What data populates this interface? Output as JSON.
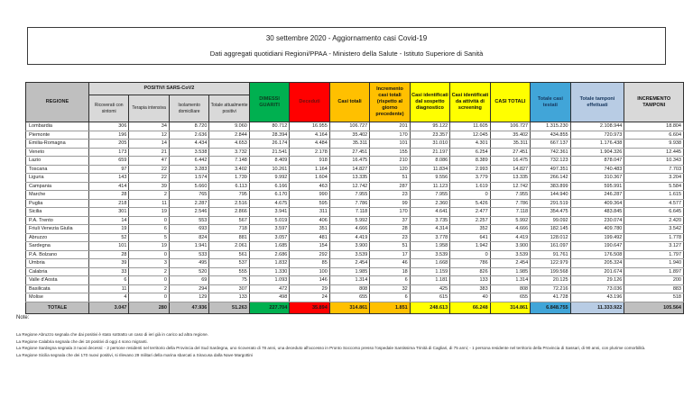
{
  "title": {
    "line1": "30 settembre 2020 - Aggiornamento casi Covid-19",
    "line2": "Dati aggregati quotidiani Regioni/PPAA - Ministero della Salute - Istituto Superiore di Sanità"
  },
  "table": {
    "region_header": "REGIONE",
    "region_header_bg": "#BFBFBF",
    "positivi_group_header": "POSITIVI SARS-CoV2",
    "subheader_bg": "#D9D9D9",
    "columns": [
      {
        "label": "Ricoverati con sintomi",
        "bg": "#D9D9D9",
        "sub": true
      },
      {
        "label": "Terapia intensiva",
        "bg": "#D9D9D9",
        "sub": true
      },
      {
        "label": "Isolamento domiciliare",
        "bg": "#D9D9D9",
        "sub": true
      },
      {
        "label": "Totale attualmente positivi",
        "bg": "#D9D9D9",
        "sub": true
      },
      {
        "label": "DIMESSI GUARITI",
        "bg": "#00B050",
        "fg": "#0e3d20"
      },
      {
        "label": "Deceduti",
        "bg": "#FF0000",
        "fg": "#6b0f0f"
      },
      {
        "label": "Casi totali",
        "bg": "#FFC000",
        "fg": "#111111"
      },
      {
        "label": "Incremento casi totali (rispetto al giorno precedente)",
        "bg": "#FFC000",
        "fg": "#111111"
      },
      {
        "label": "Casi identificati dal sospetto diagnostico",
        "bg": "#FFFF00",
        "fg": "#111111"
      },
      {
        "label": "Casi identificati da attività di screening",
        "bg": "#FFFF00",
        "fg": "#111111"
      },
      {
        "label": "CASI TOTALI",
        "bg": "#FFFF00",
        "fg": "#111111"
      },
      {
        "label": "Totale casi testati",
        "bg": "#41A5D8",
        "fg": "#17375E"
      },
      {
        "label": "Totale tamponi effettuati",
        "bg": "#B8CCE4",
        "fg": "#17375E"
      },
      {
        "label": "INCREMENTO TAMPONI",
        "bg": "#D9D9D9",
        "fg": "#111111"
      }
    ],
    "rows": [
      {
        "name": "Lombardia",
        "values": [
          "306",
          "34",
          "8.720",
          "9.060",
          "80.712",
          "16.955",
          "106.727",
          "201",
          "95.122",
          "11.605",
          "106.727",
          "1.315.230",
          "2.108.944",
          "18.804"
        ]
      },
      {
        "name": "Piemonte",
        "values": [
          "196",
          "12",
          "2.636",
          "2.844",
          "28.394",
          "4.164",
          "35.402",
          "170",
          "23.357",
          "12.045",
          "35.402",
          "434.855",
          "720.973",
          "6.604"
        ]
      },
      {
        "name": "Emilia-Romagna",
        "values": [
          "205",
          "14",
          "4.434",
          "4.653",
          "26.174",
          "4.484",
          "35.311",
          "101",
          "31.010",
          "4.301",
          "35.311",
          "667.137",
          "1.176.438",
          "9.938"
        ]
      },
      {
        "name": "Veneto",
        "values": [
          "173",
          "21",
          "3.538",
          "3.732",
          "21.541",
          "2.178",
          "27.451",
          "155",
          "21.197",
          "6.254",
          "27.451",
          "742.361",
          "1.904.326",
          "12.445"
        ]
      },
      {
        "name": "Lazio",
        "values": [
          "659",
          "47",
          "6.442",
          "7.148",
          "8.409",
          "918",
          "16.475",
          "210",
          "8.086",
          "8.389",
          "16.475",
          "732.123",
          "878.047",
          "10.343"
        ]
      },
      {
        "name": "Toscana",
        "values": [
          "97",
          "22",
          "3.283",
          "3.402",
          "10.261",
          "1.164",
          "14.827",
          "120",
          "11.834",
          "2.993",
          "14.827",
          "497.351",
          "740.483",
          "7.703"
        ]
      },
      {
        "name": "Liguria",
        "values": [
          "143",
          "22",
          "1.574",
          "1.739",
          "9.992",
          "1.604",
          "13.335",
          "51",
          "9.556",
          "3.779",
          "13.335",
          "266.142",
          "310.367",
          "3.204"
        ]
      },
      {
        "name": "Campania",
        "values": [
          "414",
          "39",
          "5.660",
          "6.113",
          "6.166",
          "463",
          "12.742",
          "287",
          "11.123",
          "1.619",
          "12.742",
          "383.899",
          "595.991",
          "5.584"
        ]
      },
      {
        "name": "Marche",
        "values": [
          "28",
          "2",
          "765",
          "795",
          "6.170",
          "990",
          "7.955",
          "23",
          "7.955",
          "0",
          "7.955",
          "144.940",
          "246.287",
          "1.615"
        ]
      },
      {
        "name": "Puglia",
        "values": [
          "218",
          "11",
          "2.287",
          "2.516",
          "4.675",
          "595",
          "7.786",
          "99",
          "2.360",
          "5.426",
          "7.786",
          "291.519",
          "409.364",
          "4.577"
        ]
      },
      {
        "name": "Sicilia",
        "values": [
          "301",
          "19",
          "2.546",
          "2.866",
          "3.941",
          "311",
          "7.118",
          "170",
          "4.641",
          "2.477",
          "7.118",
          "354.475",
          "483.845",
          "6.645"
        ]
      },
      {
        "name": "P.A. Trento",
        "values": [
          "14",
          "0",
          "553",
          "567",
          "5.019",
          "406",
          "5.992",
          "37",
          "3.735",
          "2.257",
          "5.992",
          "99.092",
          "230.074",
          "2.420"
        ]
      },
      {
        "name": "Friuli Venezia Giulia",
        "values": [
          "19",
          "6",
          "693",
          "718",
          "3.597",
          "351",
          "4.666",
          "28",
          "4.314",
          "352",
          "4.666",
          "182.145",
          "409.780",
          "3.542"
        ]
      },
      {
        "name": "Abruzzo",
        "values": [
          "52",
          "5",
          "824",
          "881",
          "3.057",
          "481",
          "4.419",
          "23",
          "3.778",
          "641",
          "4.419",
          "128.012",
          "199.492",
          "1.778"
        ]
      },
      {
        "name": "Sardegna",
        "values": [
          "101",
          "19",
          "1.941",
          "2.061",
          "1.685",
          "154",
          "3.900",
          "51",
          "1.958",
          "1.942",
          "3.900",
          "161.097",
          "190.647",
          "3.127"
        ]
      },
      {
        "name": "P.A. Bolzano",
        "values": [
          "28",
          "0",
          "533",
          "561",
          "2.686",
          "292",
          "3.539",
          "17",
          "3.539",
          "0",
          "3.539",
          "91.761",
          "176.508",
          "1.797"
        ]
      },
      {
        "name": "Umbria",
        "values": [
          "39",
          "3",
          "495",
          "537",
          "1.832",
          "85",
          "2.454",
          "46",
          "1.668",
          "786",
          "2.454",
          "122.979",
          "205.324",
          "1.940"
        ]
      },
      {
        "name": "Calabria",
        "values": [
          "33",
          "2",
          "520",
          "555",
          "1.330",
          "100",
          "1.985",
          "18",
          "1.159",
          "826",
          "1.985",
          "199.568",
          "201.674",
          "1.897"
        ]
      },
      {
        "name": "Valle d'Aosta",
        "values": [
          "6",
          "0",
          "69",
          "75",
          "1.093",
          "146",
          "1.314",
          "6",
          "1.181",
          "133",
          "1.314",
          "20.125",
          "29.126",
          "200"
        ]
      },
      {
        "name": "Basilicata",
        "values": [
          "11",
          "2",
          "294",
          "307",
          "472",
          "29",
          "808",
          "32",
          "425",
          "383",
          "808",
          "72.216",
          "73.036",
          "883"
        ]
      },
      {
        "name": "Molise",
        "values": [
          "4",
          "0",
          "129",
          "133",
          "498",
          "24",
          "655",
          "6",
          "615",
          "40",
          "655",
          "41.728",
          "43.196",
          "518"
        ]
      }
    ],
    "totale": {
      "label": "TOTALE",
      "values": [
        "3.047",
        "280",
        "47.936",
        "51.263",
        "227.704",
        "35.894",
        "314.861",
        "1.851",
        "248.613",
        "66.248",
        "314.861",
        "6.848.755",
        "11.333.922",
        "105.564"
      ],
      "bgs": [
        "#BFBFBF",
        "#BFBFBF",
        "#BFBFBF",
        "#BFBFBF",
        "#BFBFBF",
        "#00B050",
        "#FF0000",
        "#FFC000",
        "#FFC000",
        "#FFFF00",
        "#FFFF00",
        "#FFFF00",
        "#41A5D8",
        "#B8CCE4",
        "#BFBFBF"
      ]
    }
  },
  "notes": {
    "title": "Note:",
    "items": [
      "La Regione Abruzzo segnala che dai positivi è stato sottratto un caso di ieri già in carico ad altra regione.",
      "La Regione Calabria segnala che dei 18 positivi di oggi 4 sono migranti.",
      "La Regione Sardegna segnala 3 nuovi decessi: - 2 persone residenti nel territorio della Provincia del Sud Sardegna, uno ricoverato di 78 anni, una deceduto all'accesso in Pronto Soccorso presso l'ospedale Santissima Trinità di Cagliari, di 75 anni; - 1 persona residente nel territorio della Provincia di Sassari, di 90 anni, con plurime comorbilità.",
      "La Regione Sicilia segnala che dei 170 nuovi positivi, si rilevano 29 militari della marina sbarcati a Siracusa dalla Nave Margottini"
    ]
  }
}
